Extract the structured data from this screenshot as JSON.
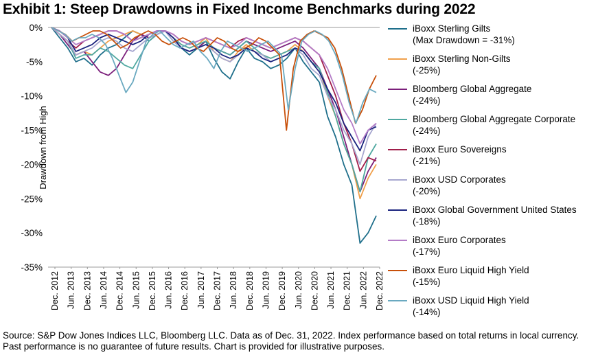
{
  "title": "Exhibit 1: Steep Drawdowns in Fixed Income Benchmarks during 2022",
  "source": "Source: S&P Dow Jones Indices LLC, Bloomberg LLC. Data as of Dec. 31, 2022. Index performance based on total returns in local currency. Past performance is no guarantee of future results. Chart is provided for illustrative purposes.",
  "chart_data": {
    "type": "line",
    "ylabel": "Drawdown from High",
    "xlabel": "",
    "ylim": [
      -35,
      0
    ],
    "yticks": [
      "0%",
      "-5%",
      "-10%",
      "-15%",
      "-20%",
      "-25%",
      "-30%",
      "-35%"
    ],
    "xticks": [
      "Dec. 2012",
      "Jun. 2013",
      "Dec. 2013",
      "Jun. 2014",
      "Dec. 2014",
      "Jun. 2015",
      "Dec. 2015",
      "Jun. 2016",
      "Dec. 2016",
      "Jun. 2017",
      "Dec. 2017",
      "Jun. 2018",
      "Dec. 2018",
      "Jun. 2019",
      "Dec. 2019",
      "Jun. 2020",
      "Dec. 2020",
      "Jun. 2021",
      "Dec. 2021",
      "Jun. 2022",
      "Dec. 2022"
    ],
    "legend_position": "right",
    "series": [
      {
        "name": "iBoxx Sterling Gilts",
        "legend_line1": "iBoxx Sterling Gilts",
        "legend_line2": "(Max Drawdown = -31%)",
        "color": "#1f6f8b",
        "values": [
          0,
          -1.5,
          -3,
          -5,
          -4.5,
          -5.5,
          -4,
          -3,
          -2.5,
          -1.5,
          -0.5,
          -1,
          -2,
          -1,
          -0.5,
          -2,
          -3,
          -4,
          -3,
          -2,
          -4.5,
          -6.5,
          -7.5,
          -5,
          -3,
          -4.5,
          -5,
          -6,
          -5.5,
          -4.5,
          -3,
          -5,
          -6.5,
          -8,
          -13,
          -16,
          -20,
          -23,
          -31.5,
          -30,
          -27.5
        ]
      },
      {
        "name": "iBoxx Sterling Non-Gilts",
        "legend_line1": "iBoxx Sterling Non-Gilts",
        "legend_line2": "(-25%)",
        "color": "#f0a04b",
        "values": [
          0,
          -1,
          -2,
          -4,
          -3.5,
          -4,
          -3,
          -2,
          -1.5,
          -1,
          -0.5,
          -1,
          -1.5,
          -1,
          -0.5,
          -1.5,
          -2.5,
          -3,
          -2.5,
          -1.5,
          -3.5,
          -4.5,
          -5,
          -3.5,
          -2.5,
          -3.5,
          -4,
          -4.5,
          -4,
          -3.5,
          -2.5,
          -3.5,
          -5,
          -6,
          -10,
          -13,
          -17,
          -20,
          -25,
          -22,
          -20
        ]
      },
      {
        "name": "Bloomberg Global Aggregate",
        "legend_line1": "Bloomberg Global Aggregate",
        "legend_line2": "(-24%)",
        "color": "#7b1f7b",
        "values": [
          0,
          -1,
          -2.5,
          -4,
          -3.5,
          -5,
          -6.5,
          -7,
          -6,
          -4,
          -2,
          -1,
          -1.5,
          -1,
          -0.5,
          -1.5,
          -3,
          -3.5,
          -3,
          -2,
          -3,
          -3.5,
          -4,
          -3,
          -2,
          -2.5,
          -3,
          -3.5,
          -3,
          -2.5,
          -2,
          -3,
          -4.5,
          -6,
          -9,
          -12,
          -16,
          -20,
          -24,
          -21,
          -19
        ]
      },
      {
        "name": "Bloomberg Global Aggregate Corporate",
        "legend_line1": "Bloomberg Global Aggregate Corporate",
        "legend_line2": "(-24%)",
        "color": "#4fa8a0",
        "values": [
          0,
          -1,
          -2,
          -4.5,
          -4,
          -4,
          -3,
          -3.5,
          -4.5,
          -5.5,
          -6,
          -4,
          -2,
          -1,
          -0.5,
          -1.5,
          -2.5,
          -3,
          -2.5,
          -2,
          -3,
          -3.5,
          -4,
          -3,
          -2,
          -3,
          -4,
          -4.5,
          -4,
          -3.5,
          -3,
          -3.5,
          -5,
          -6,
          -9.5,
          -13,
          -17,
          -20,
          -24,
          -19,
          -17
        ]
      },
      {
        "name": "iBoxx Euro Sovereigns",
        "legend_line1": "iBoxx Euro Sovereigns",
        "legend_line2": "(-21%)",
        "color": "#a01e4a",
        "values": [
          0,
          -1,
          -2,
          -3,
          -2,
          -1.5,
          -1,
          -0.5,
          -0.5,
          -1,
          -2,
          -1.5,
          -1,
          -0.5,
          -0.5,
          -1,
          -2,
          -2.5,
          -2,
          -1.5,
          -2,
          -2.5,
          -3,
          -2,
          -1.5,
          -2,
          -2.5,
          -3,
          -2.5,
          -2,
          -1.5,
          -2,
          -3,
          -4,
          -7,
          -10,
          -14,
          -17,
          -21,
          -19,
          -19.5
        ]
      },
      {
        "name": "iBoxx USD Corporates",
        "legend_line1": "iBoxx USD Corporates",
        "legend_line2": "(-20%)",
        "color": "#a7a7cf",
        "values": [
          0,
          -1,
          -2,
          -4,
          -3.5,
          -3,
          -2,
          -1.5,
          -2,
          -3,
          -3.5,
          -2.5,
          -1.5,
          -1,
          -0.5,
          -2,
          -3,
          -3.5,
          -3,
          -2.5,
          -3.5,
          -4.5,
          -5,
          -4,
          -3,
          -3.5,
          -4,
          -5,
          -4.5,
          -4,
          -3,
          -4,
          -6,
          -7,
          -10,
          -12,
          -15,
          -17,
          -20,
          -16,
          -14
        ]
      },
      {
        "name": "iBoxx Global Government United States",
        "legend_line1": "iBoxx Global Government United States",
        "legend_line2": "(-18%)",
        "color": "#1a237e",
        "values": [
          0,
          -0.5,
          -1.5,
          -3.5,
          -3,
          -2.5,
          -1.5,
          -1,
          -1.5,
          -2,
          -2.5,
          -2,
          -1,
          -0.5,
          -0.5,
          -1.5,
          -3,
          -3.5,
          -3,
          -2.5,
          -3,
          -4,
          -4.5,
          -4,
          -3,
          -3.5,
          -4.5,
          -5,
          -4.5,
          -4,
          -3,
          -3.5,
          -5,
          -6.5,
          -9,
          -11,
          -14,
          -16,
          -18,
          -15,
          -14.5
        ]
      },
      {
        "name": "iBoxx Euro Corporates",
        "legend_line1": "iBoxx Euro Corporates",
        "legend_line2": "(-17%)",
        "color": "#b47cc7",
        "values": [
          0,
          -0.5,
          -1.5,
          -2.5,
          -2,
          -1.5,
          -1,
          -0.5,
          -0.5,
          -1,
          -2,
          -1.5,
          -1,
          -0.5,
          -0.5,
          -1,
          -2,
          -2.5,
          -2,
          -1.5,
          -2,
          -2.5,
          -3,
          -2.5,
          -1.5,
          -2,
          -2.5,
          -3,
          -2.5,
          -2,
          -1.5,
          -2,
          -3,
          -4,
          -6,
          -9,
          -12,
          -14,
          -17,
          -15,
          -14
        ]
      },
      {
        "name": "iBoxx Euro Liquid High Yield",
        "legend_line1": "iBoxx Euro Liquid High Yield",
        "legend_line2": "(-15%)",
        "color": "#c8500a",
        "values": [
          0,
          -0.5,
          -1,
          -2,
          -1.5,
          -1,
          -0.5,
          -0.5,
          -1,
          -2,
          -3,
          -2.5,
          -1.5,
          -1,
          -0.5,
          -1,
          -2,
          -2.5,
          -2,
          -1.5,
          -2,
          -3,
          -3.5,
          -2.5,
          -1.5,
          -2,
          -3,
          -3.5,
          -3,
          -2.5,
          -1.5,
          -2,
          -3,
          -4,
          -15,
          -6,
          -2,
          -1,
          -0.5,
          -1,
          -1.5,
          -3,
          -6,
          -10,
          -14,
          -12,
          -9,
          -7
        ]
      },
      {
        "name": "iBoxx USD Liquid High Yield",
        "legend_line1": "iBoxx USD Liquid High Yield",
        "legend_line2": "(-14%)",
        "color": "#6aa9c0",
        "values": [
          0,
          -0.5,
          -1,
          -2,
          -1.5,
          -1.5,
          -1,
          -1.5,
          -2.5,
          -4.5,
          -7,
          -9.5,
          -8,
          -5,
          -2,
          -1,
          -0.5,
          -1.5,
          -2.5,
          -3,
          -2.5,
          -2,
          -3.5,
          -4.5,
          -6,
          -3.5,
          -2,
          -2.5,
          -3,
          -3.5,
          -3,
          -2.5,
          -2,
          -3,
          -4,
          -12,
          -6,
          -2,
          -1,
          -0.5,
          -1,
          -2,
          -4,
          -7,
          -11,
          -14,
          -11,
          -9,
          -9.5
        ]
      }
    ]
  }
}
